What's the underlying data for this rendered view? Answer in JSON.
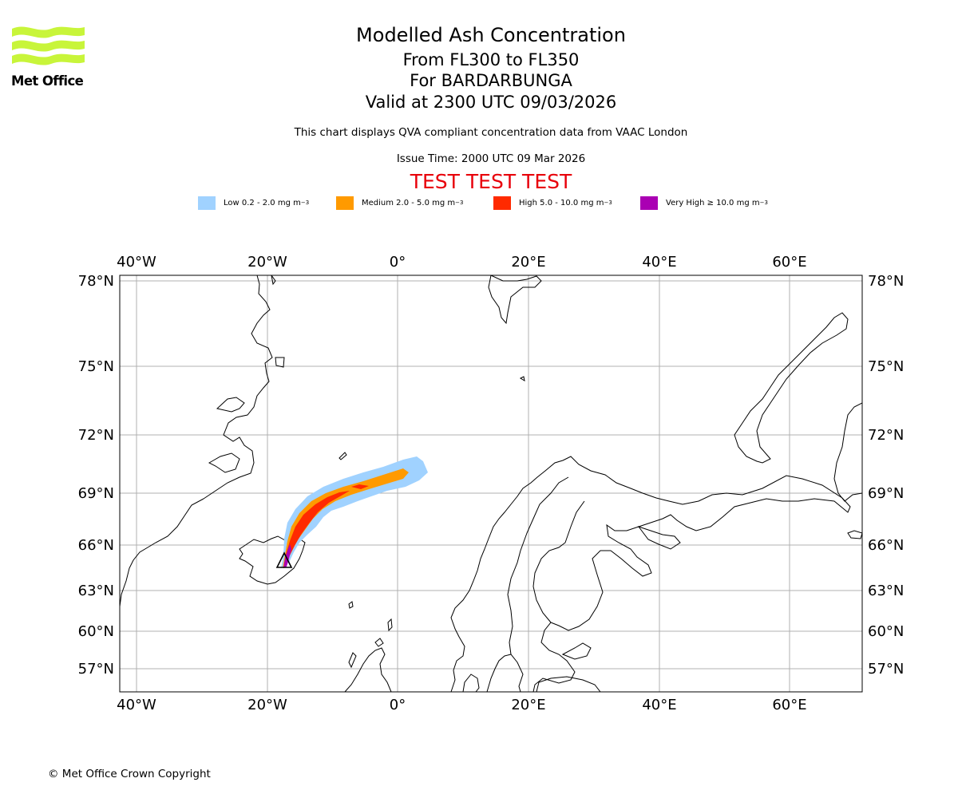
{
  "header": {
    "title": "Modelled Ash Concentration",
    "subtitle_levels": "From FL300 to FL350",
    "subtitle_volcano": "For BARDARBUNGA",
    "subtitle_valid": "Valid at 2300 UTC 09/03/2026",
    "note": "This chart displays QVA compliant concentration data from VAAC London",
    "issue_time": "Issue Time: 2000 UTC 09 Mar 2026",
    "test_banner": "TEST TEST TEST"
  },
  "logo": {
    "text": "Met Office",
    "color": "#c8f53a"
  },
  "legend": [
    {
      "label": "Low 0.2 - 2.0 mg m",
      "sup": "−3",
      "color": "#a0d2ff"
    },
    {
      "label": "Medium 2.0 - 5.0 mg m",
      "sup": "−3",
      "color": "#ff9a00"
    },
    {
      "label": "High 5.0 - 10.0 mg m",
      "sup": "−3",
      "color": "#ff2a00"
    },
    {
      "label": "Very High ≥ 10.0 mg m",
      "sup": "−3",
      "color": "#aa00b3"
    }
  ],
  "map": {
    "lon_ticks": [
      "40°W",
      "20°W",
      "0°",
      "20°E",
      "40°E",
      "60°E"
    ],
    "lat_ticks": [
      "78°N",
      "75°N",
      "72°N",
      "69°N",
      "66°N",
      "63°N",
      "60°N",
      "57°N"
    ],
    "grid": true,
    "volcano_marker": "triangle",
    "ash_levels": [
      "low",
      "medium",
      "high",
      "very_high"
    ]
  },
  "footer": {
    "copyright": "© Met Office Crown Copyright"
  }
}
